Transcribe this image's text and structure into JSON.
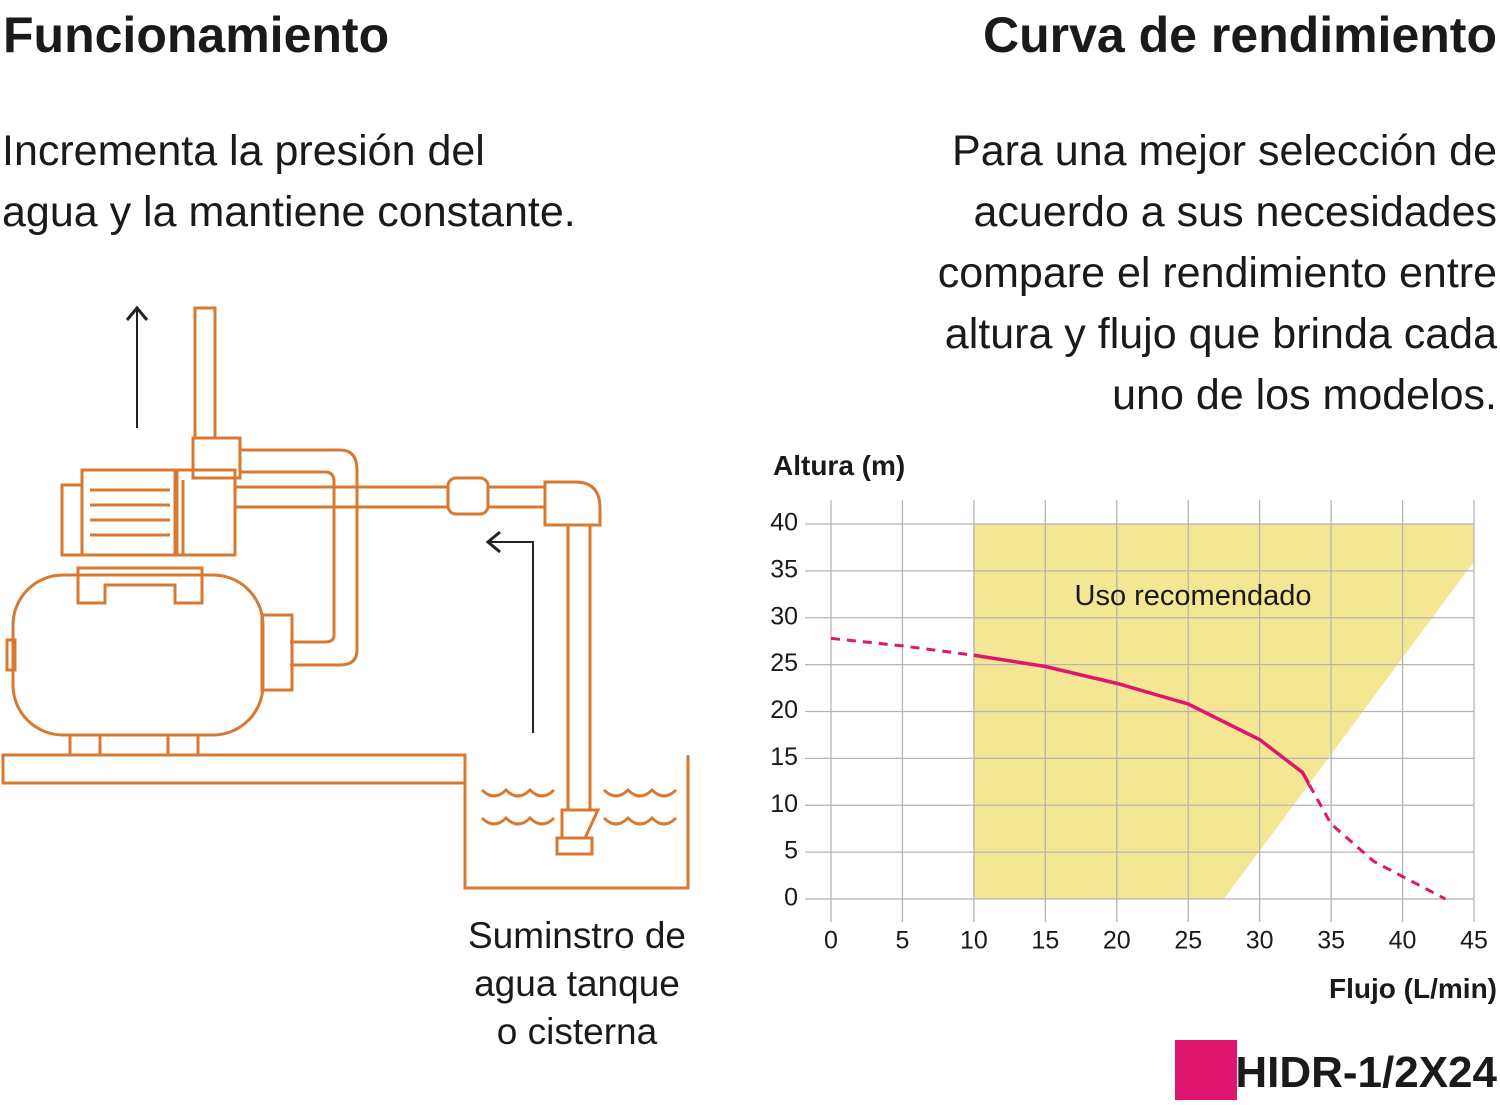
{
  "left": {
    "title": "Funcionamiento",
    "description": [
      "Incrementa la presión del",
      "agua y la mantiene constante."
    ],
    "caption": [
      "Suminstro de",
      "agua tanque",
      "o cisterna"
    ]
  },
  "right": {
    "title": "Curva de rendimiento",
    "description": [
      "Para una mejor selección de",
      "acuerdo a sus necesidades",
      "compare el rendimiento entre",
      "altura y flujo que brinda cada",
      "uno de los modelos."
    ]
  },
  "chart_data": {
    "type": "line",
    "y_label": "Altura (m)",
    "x_label": "Flujo (L/min)",
    "annotation": "Uso recomendado",
    "xlim": [
      0,
      45
    ],
    "ylim": [
      0,
      40
    ],
    "xticks": [
      0,
      5,
      10,
      15,
      20,
      25,
      30,
      35,
      40,
      45
    ],
    "yticks": [
      0,
      5,
      10,
      15,
      20,
      25,
      30,
      35,
      40
    ],
    "grid": true,
    "recommended_region": {
      "color": "#f5e694",
      "x": [
        10,
        10,
        45,
        45,
        27.5
      ],
      "y": [
        0,
        40,
        40,
        36,
        0
      ]
    },
    "solid_xlim": [
      10,
      33.5
    ],
    "x": [
      0,
      5,
      10,
      15,
      20,
      25,
      30,
      33,
      35,
      38,
      43
    ],
    "series": [
      {
        "name": "HIDR-1/2X24",
        "color": "#e0156e",
        "values": [
          27.8,
          27,
          26,
          24.8,
          23,
          20.8,
          17,
          13.5,
          8,
          4,
          0
        ]
      }
    ]
  }
}
